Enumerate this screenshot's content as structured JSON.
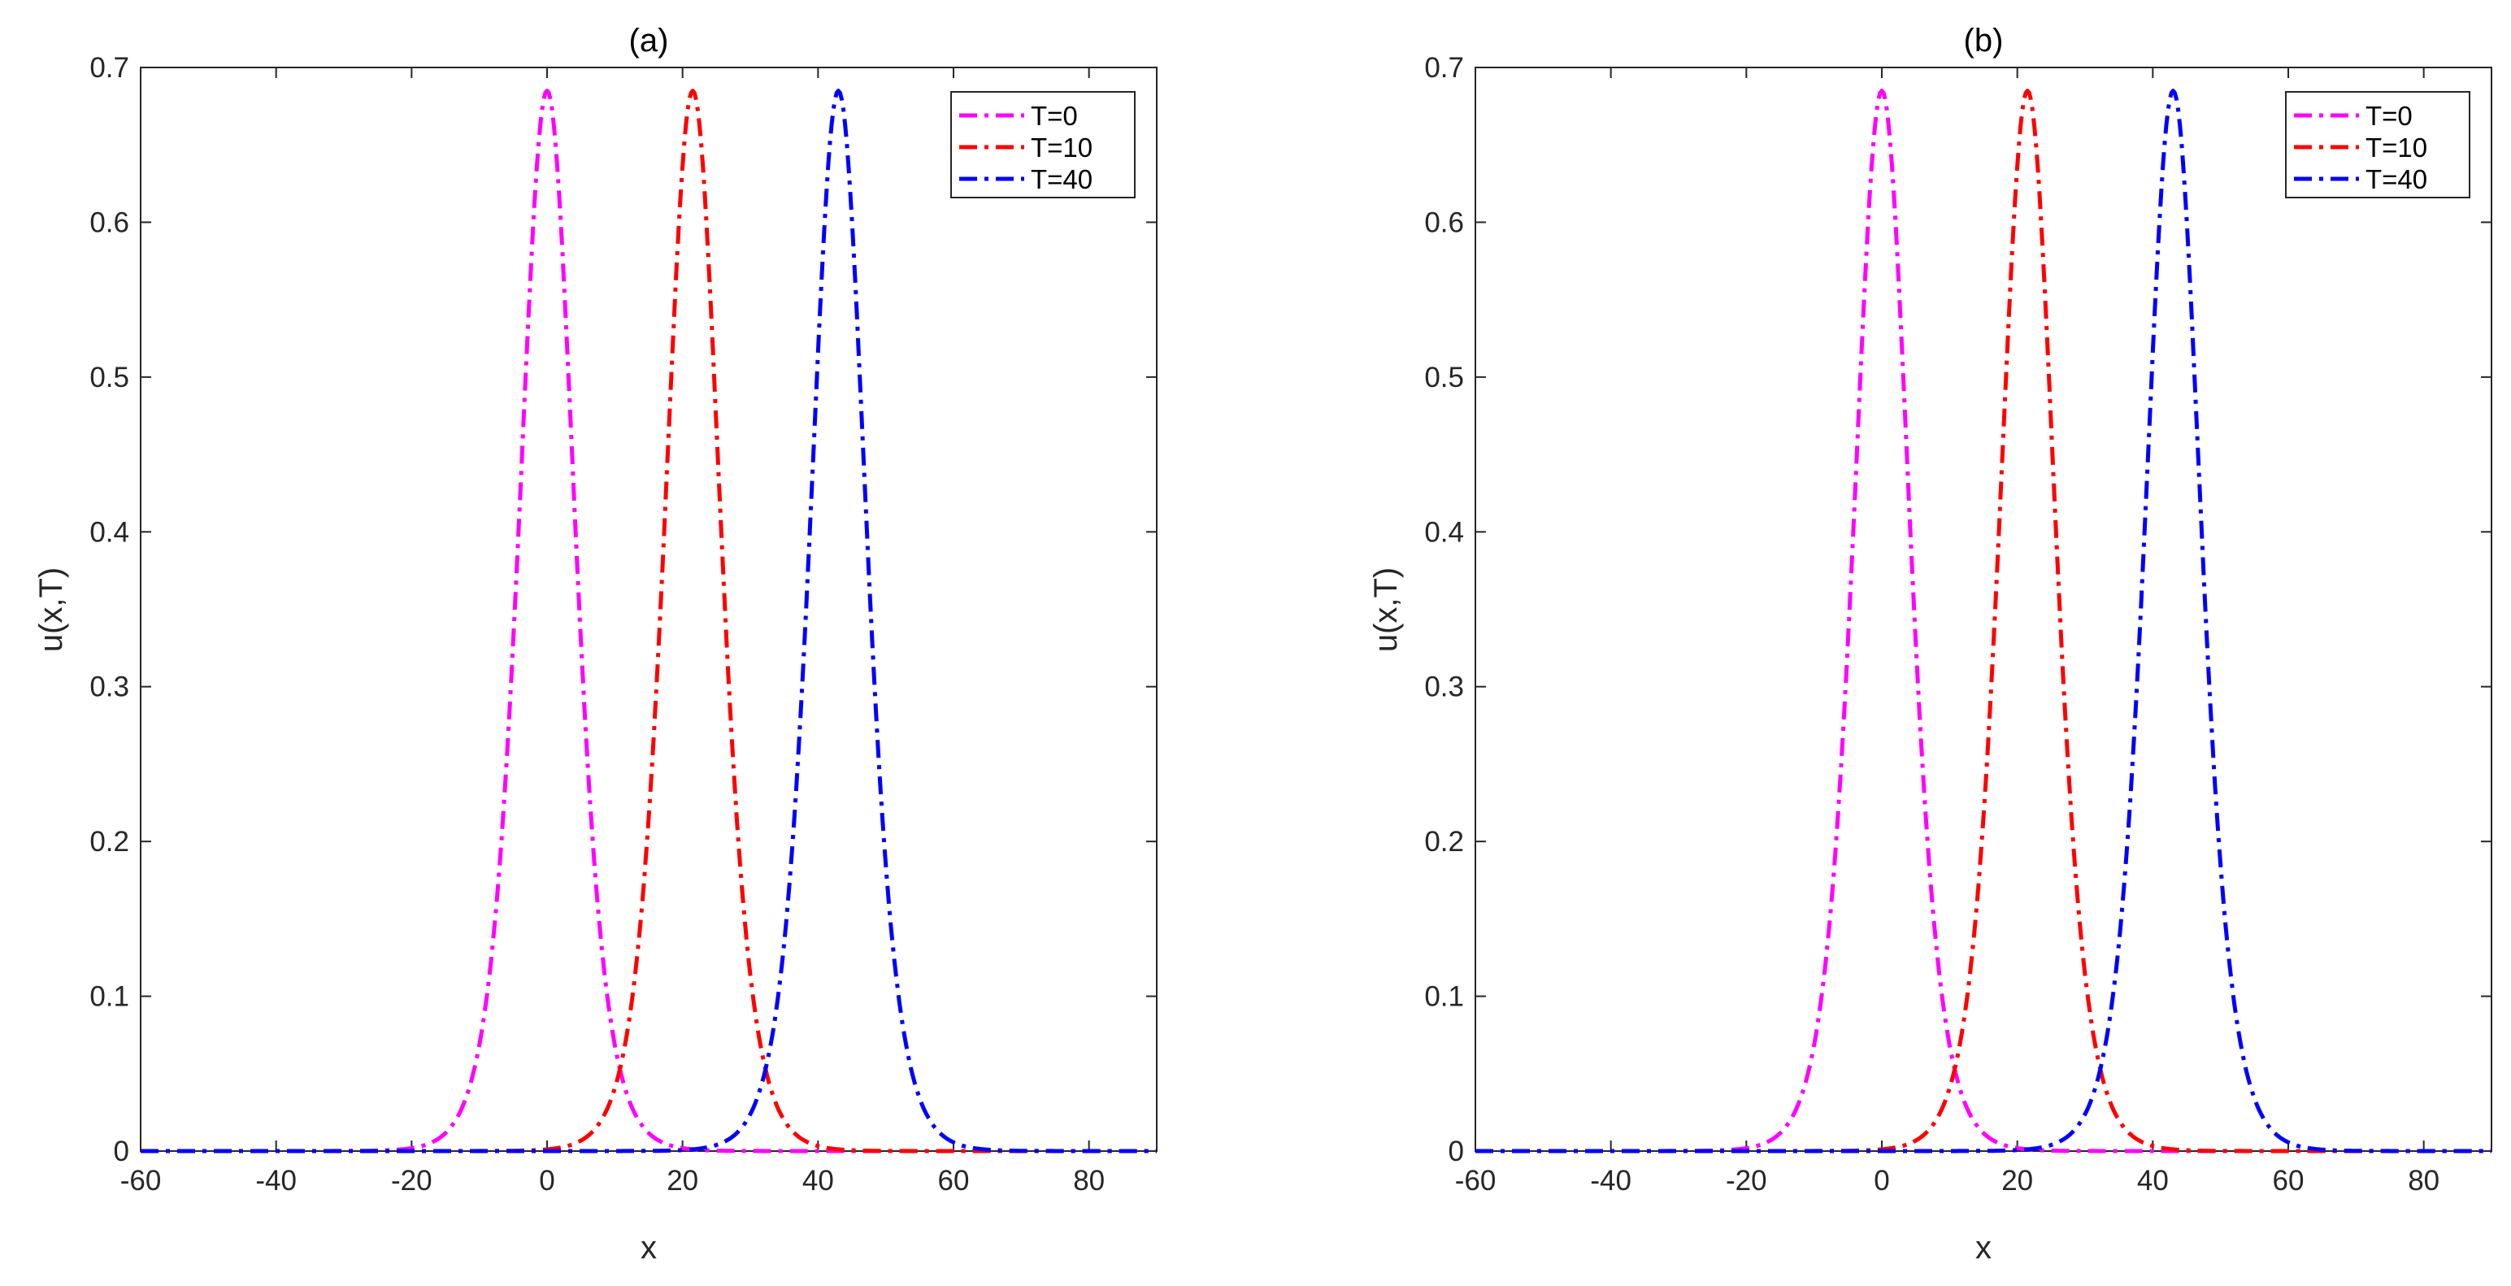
{
  "chart_data": [
    {
      "type": "line",
      "title": "(a)",
      "xlabel": "x",
      "ylabel": "u(x,T)",
      "xlim": [
        -60,
        90
      ],
      "ylim": [
        0,
        0.7
      ],
      "xticks": [
        -60,
        -40,
        -20,
        0,
        20,
        40,
        60,
        80
      ],
      "xtick_labels": [
        "-60",
        "-40",
        "-20",
        "0",
        "20",
        "40",
        "60",
        "80"
      ],
      "yticks": [
        0,
        0.1,
        0.2,
        0.3,
        0.4,
        0.5,
        0.6,
        0.7
      ],
      "ytick_labels": [
        "0",
        "0.1",
        "0.2",
        "0.3",
        "0.4",
        "0.5",
        "0.6",
        "0.7"
      ],
      "grid": false,
      "legend_position": "top-right",
      "series": [
        {
          "name": "T=0",
          "color": "#ff00ff",
          "line_style": "dash-dot",
          "peak": 0.685,
          "center": 0.0,
          "width": 5.5
        },
        {
          "name": "T=10",
          "color": "#ff0000",
          "line_style": "dash-dot",
          "peak": 0.685,
          "center": 21.5,
          "width": 5.5
        },
        {
          "name": "T=40",
          "color": "#0000ff",
          "line_style": "dash-dot",
          "peak": 0.685,
          "center": 43.0,
          "width": 5.5
        }
      ]
    },
    {
      "type": "line",
      "title": "(b)",
      "xlabel": "x",
      "ylabel": "u(x,T)",
      "xlim": [
        -60,
        90
      ],
      "ylim": [
        0,
        0.7
      ],
      "xticks": [
        -60,
        -40,
        -20,
        0,
        20,
        40,
        60,
        80
      ],
      "xtick_labels": [
        "-60",
        "-40",
        "-20",
        "0",
        "20",
        "40",
        "60",
        "80"
      ],
      "yticks": [
        0,
        0.1,
        0.2,
        0.3,
        0.4,
        0.5,
        0.6,
        0.7
      ],
      "ytick_labels": [
        "0",
        "0.1",
        "0.2",
        "0.3",
        "0.4",
        "0.5",
        "0.6",
        "0.7"
      ],
      "grid": false,
      "legend_position": "top-right",
      "series": [
        {
          "name": "T=0",
          "color": "#ff00ff",
          "line_style": "dash-dot",
          "peak": 0.685,
          "center": 0.0,
          "width": 5.5
        },
        {
          "name": "T=10",
          "color": "#ff0000",
          "line_style": "dash-dot",
          "peak": 0.685,
          "center": 21.5,
          "width": 5.5
        },
        {
          "name": "T=40",
          "color": "#0000ff",
          "line_style": "dash-dot",
          "peak": 0.685,
          "center": 43.0,
          "width": 5.5
        }
      ]
    }
  ]
}
